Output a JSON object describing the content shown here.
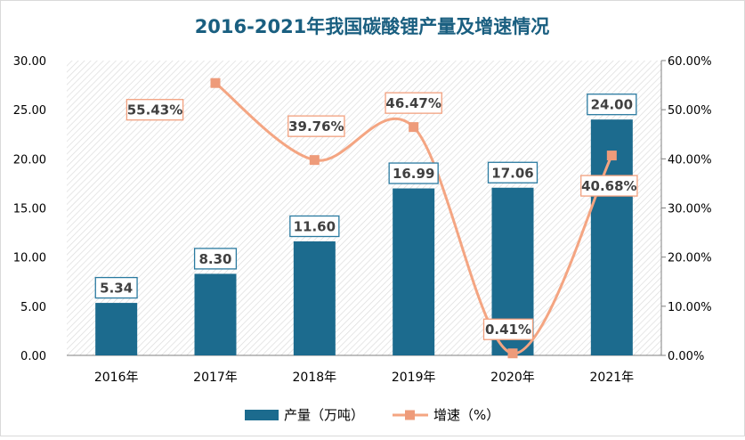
{
  "chart_data": {
    "type": "bar",
    "title": "2016-2021年我国碳酸锂产量及增速情况",
    "categories": [
      "2016年",
      "2017年",
      "2018年",
      "2019年",
      "2020年",
      "2021年"
    ],
    "series": [
      {
        "name": "产量（万吨）",
        "type": "bar",
        "axis": "left",
        "values": [
          5.34,
          8.3,
          11.6,
          16.99,
          17.06,
          24.0
        ],
        "labels": [
          "5.34",
          "8.30",
          "11.60",
          "16.99",
          "17.06",
          "24.00"
        ]
      },
      {
        "name": "增速（%）",
        "type": "line",
        "axis": "right",
        "values": [
          null,
          55.43,
          39.76,
          46.47,
          0.41,
          40.68
        ],
        "labels": [
          null,
          "55.43%",
          "39.76%",
          "46.47%",
          "0.41%",
          "40.68%"
        ]
      }
    ],
    "y_left": {
      "ylim": [
        0,
        30
      ],
      "ticks": [
        "0.00",
        "5.00",
        "10.00",
        "15.00",
        "20.00",
        "25.00",
        "30.00"
      ]
    },
    "y_right": {
      "ylim": [
        0,
        60
      ],
      "ticks": [
        "0.00%",
        "10.00%",
        "20.00%",
        "30.00%",
        "40.00%",
        "50.00%",
        "60.00%"
      ]
    },
    "legend_position": "bottom",
    "colors": {
      "bar": "#1c6b8e",
      "line": "#f4a582",
      "marker": "#ee9b7a",
      "title": "#1a5f80",
      "bar_label_border": "#2a7aa0",
      "line_label_border": "#f2a07e"
    }
  }
}
